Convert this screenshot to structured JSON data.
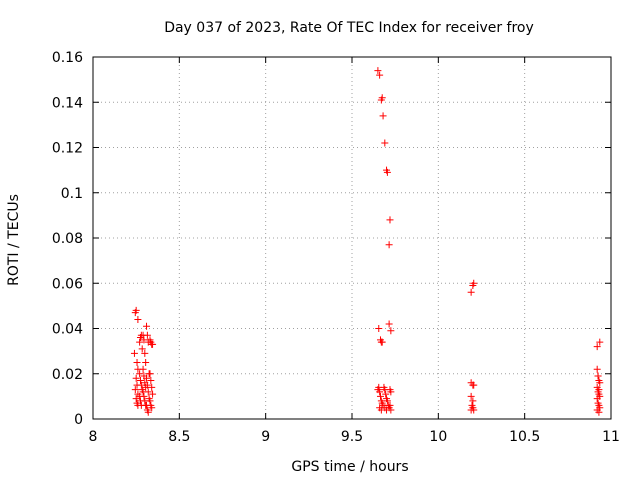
{
  "chart_data": {
    "type": "scatter",
    "title": "Day 037 of 2023, Rate Of TEC Index for receiver froy",
    "xlabel": "GPS time / hours",
    "ylabel": "ROTI / TECUs",
    "xlim": [
      8,
      11
    ],
    "ylim": [
      0,
      0.16
    ],
    "xticks": [
      8,
      8.5,
      9,
      9.5,
      10,
      10.5,
      11
    ],
    "xtick_labels": [
      "8",
      "8.5",
      "9",
      "9.5",
      "10",
      "10.5",
      "11"
    ],
    "yticks": [
      0,
      0.02,
      0.04,
      0.06,
      0.08,
      0.1,
      0.12,
      0.14,
      0.16
    ],
    "ytick_labels": [
      "0",
      "0.02",
      "0.04",
      "0.06",
      "0.08",
      "0.1",
      "0.12",
      "0.14",
      "0.16"
    ],
    "grid": true,
    "marker": "plus",
    "color": "#ff0000",
    "series": [
      {
        "name": "ROTI",
        "points": [
          [
            8.25,
            0.048
          ],
          [
            8.245,
            0.047
          ],
          [
            8.26,
            0.044
          ],
          [
            8.24,
            0.029
          ],
          [
            8.255,
            0.025
          ],
          [
            8.26,
            0.022
          ],
          [
            8.25,
            0.018
          ],
          [
            8.255,
            0.015
          ],
          [
            8.245,
            0.013
          ],
          [
            8.26,
            0.011
          ],
          [
            8.25,
            0.009
          ],
          [
            8.255,
            0.007
          ],
          [
            8.26,
            0.006
          ],
          [
            8.27,
            0.034
          ],
          [
            8.275,
            0.036
          ],
          [
            8.28,
            0.037
          ],
          [
            8.285,
            0.031
          ],
          [
            8.27,
            0.02
          ],
          [
            8.275,
            0.017
          ],
          [
            8.28,
            0.015
          ],
          [
            8.285,
            0.013
          ],
          [
            8.27,
            0.01
          ],
          [
            8.275,
            0.008
          ],
          [
            8.28,
            0.006
          ],
          [
            8.29,
            0.037
          ],
          [
            8.295,
            0.035
          ],
          [
            8.3,
            0.029
          ],
          [
            8.305,
            0.025
          ],
          [
            8.29,
            0.022
          ],
          [
            8.295,
            0.019
          ],
          [
            8.3,
            0.016
          ],
          [
            8.305,
            0.014
          ],
          [
            8.29,
            0.012
          ],
          [
            8.295,
            0.01
          ],
          [
            8.3,
            0.008
          ],
          [
            8.305,
            0.006
          ],
          [
            8.31,
            0.041
          ],
          [
            8.315,
            0.037
          ],
          [
            8.32,
            0.034
          ],
          [
            8.325,
            0.02
          ],
          [
            8.31,
            0.018
          ],
          [
            8.315,
            0.015
          ],
          [
            8.32,
            0.012
          ],
          [
            8.325,
            0.009
          ],
          [
            8.31,
            0.006
          ],
          [
            8.315,
            0.004
          ],
          [
            8.32,
            0.003
          ],
          [
            8.33,
            0.035
          ],
          [
            8.335,
            0.034
          ],
          [
            8.34,
            0.033
          ],
          [
            8.345,
            0.033
          ],
          [
            8.33,
            0.02
          ],
          [
            8.335,
            0.017
          ],
          [
            8.34,
            0.014
          ],
          [
            8.345,
            0.011
          ],
          [
            8.33,
            0.008
          ],
          [
            8.335,
            0.006
          ],
          [
            8.34,
            0.005
          ],
          [
            9.65,
            0.154
          ],
          [
            9.66,
            0.152
          ],
          [
            9.67,
            0.141
          ],
          [
            9.675,
            0.142
          ],
          [
            9.68,
            0.134
          ],
          [
            9.69,
            0.122
          ],
          [
            9.7,
            0.11
          ],
          [
            9.705,
            0.109
          ],
          [
            9.72,
            0.088
          ],
          [
            9.715,
            0.077
          ],
          [
            9.715,
            0.042
          ],
          [
            9.725,
            0.039
          ],
          [
            9.655,
            0.04
          ],
          [
            9.665,
            0.035
          ],
          [
            9.67,
            0.034
          ],
          [
            9.675,
            0.034
          ],
          [
            9.65,
            0.013
          ],
          [
            9.655,
            0.014
          ],
          [
            9.66,
            0.012
          ],
          [
            9.665,
            0.01
          ],
          [
            9.67,
            0.008
          ],
          [
            9.675,
            0.007
          ],
          [
            9.68,
            0.006
          ],
          [
            9.685,
            0.014
          ],
          [
            9.69,
            0.013
          ],
          [
            9.695,
            0.011
          ],
          [
            9.7,
            0.009
          ],
          [
            9.705,
            0.008
          ],
          [
            9.71,
            0.006
          ],
          [
            9.715,
            0.005
          ],
          [
            9.72,
            0.013
          ],
          [
            9.725,
            0.012
          ],
          [
            9.72,
            0.006
          ],
          [
            9.725,
            0.004
          ],
          [
            9.66,
            0.005
          ],
          [
            9.67,
            0.004
          ],
          [
            9.69,
            0.005
          ],
          [
            9.7,
            0.004
          ],
          [
            10.19,
            0.056
          ],
          [
            10.2,
            0.059
          ],
          [
            10.205,
            0.06
          ],
          [
            10.19,
            0.016
          ],
          [
            10.2,
            0.015
          ],
          [
            10.205,
            0.015
          ],
          [
            10.19,
            0.01
          ],
          [
            10.2,
            0.008
          ],
          [
            10.195,
            0.006
          ],
          [
            10.2,
            0.005
          ],
          [
            10.205,
            0.004
          ],
          [
            10.19,
            0.004
          ],
          [
            10.92,
            0.032
          ],
          [
            10.935,
            0.034
          ],
          [
            10.92,
            0.022
          ],
          [
            10.925,
            0.019
          ],
          [
            10.93,
            0.017
          ],
          [
            10.935,
            0.016
          ],
          [
            10.92,
            0.014
          ],
          [
            10.925,
            0.012
          ],
          [
            10.93,
            0.011
          ],
          [
            10.935,
            0.01
          ],
          [
            10.92,
            0.009
          ],
          [
            10.925,
            0.007
          ],
          [
            10.93,
            0.006
          ],
          [
            10.935,
            0.005
          ],
          [
            10.92,
            0.004
          ],
          [
            10.93,
            0.003
          ],
          [
            10.925,
            0.019
          ],
          [
            10.93,
            0.013
          ]
        ]
      }
    ]
  }
}
